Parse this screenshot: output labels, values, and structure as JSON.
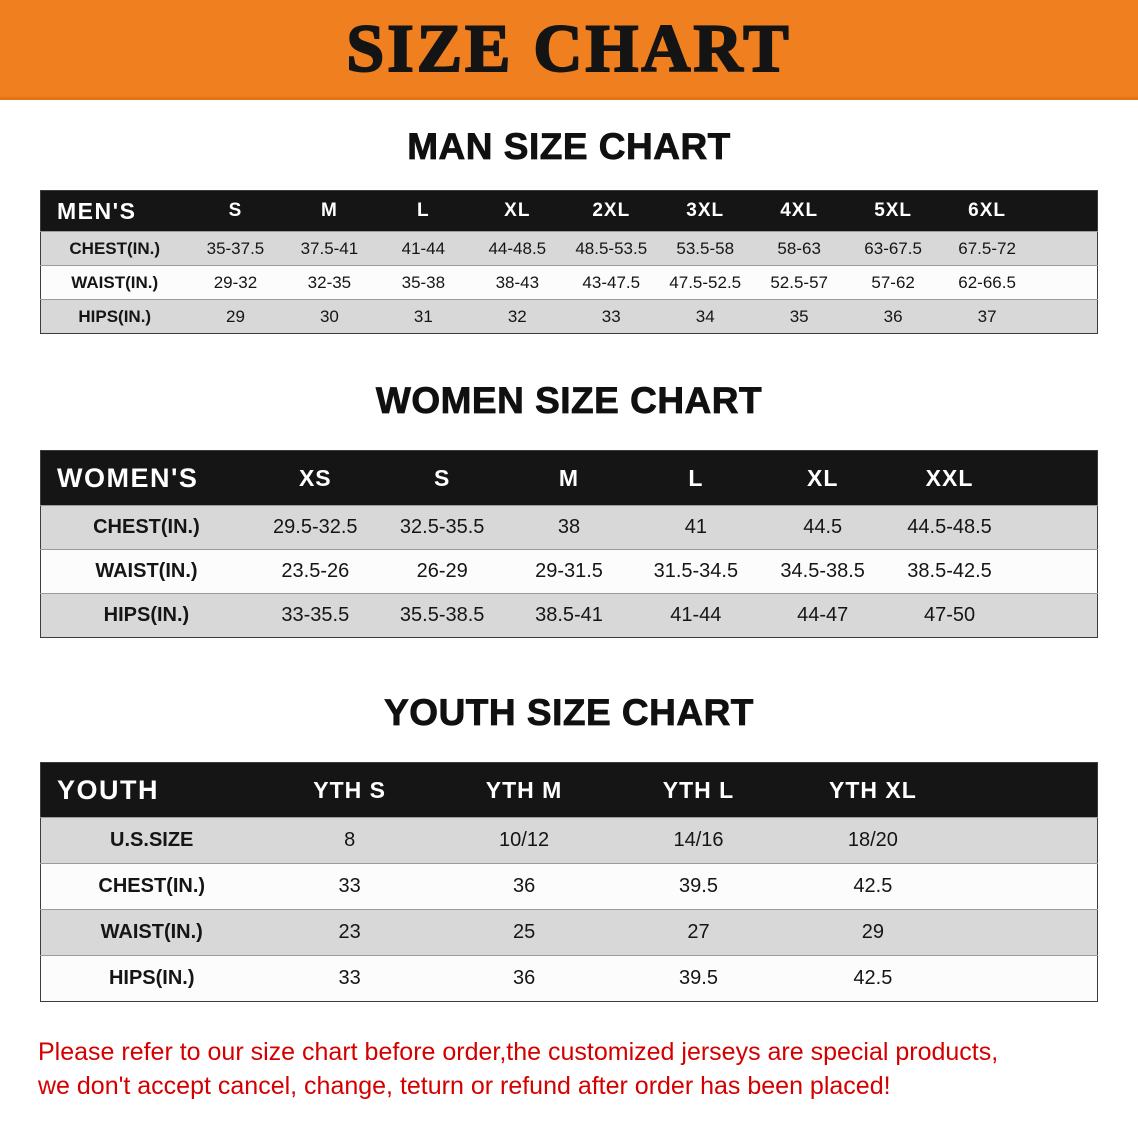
{
  "banner": {
    "title": "SIZE CHART"
  },
  "men": {
    "heading": "MAN SIZE CHART",
    "table": {
      "header": [
        "MEN'S",
        "S",
        "M",
        "L",
        "XL",
        "2XL",
        "3XL",
        "4XL",
        "5XL",
        "6XL"
      ],
      "rows": [
        [
          "CHEST(IN.)",
          "35-37.5",
          "37.5-41",
          "41-44",
          "44-48.5",
          "48.5-53.5",
          "53.5-58",
          "58-63",
          "63-67.5",
          "67.5-72"
        ],
        [
          "WAIST(IN.)",
          "29-32",
          "32-35",
          "35-38",
          "38-43",
          "43-47.5",
          "47.5-52.5",
          "52.5-57",
          "57-62",
          "62-66.5"
        ],
        [
          "HIPS(IN.)",
          "29",
          "30",
          "31",
          "32",
          "33",
          "34",
          "35",
          "36",
          "37"
        ]
      ]
    }
  },
  "women": {
    "heading": "WOMEN SIZE CHART",
    "table": {
      "header": [
        "WOMEN'S",
        "XS",
        "S",
        "M",
        "L",
        "XL",
        "XXL"
      ],
      "rows": [
        [
          "CHEST(IN.)",
          "29.5-32.5",
          "32.5-35.5",
          "38",
          "41",
          "44.5",
          "44.5-48.5"
        ],
        [
          "WAIST(IN.)",
          "23.5-26",
          "26-29",
          "29-31.5",
          "31.5-34.5",
          "34.5-38.5",
          "38.5-42.5"
        ],
        [
          "HIPS(IN.)",
          "33-35.5",
          "35.5-38.5",
          "38.5-41",
          "41-44",
          "44-47",
          "47-50"
        ]
      ]
    }
  },
  "youth": {
    "heading": "YOUTH SIZE CHART",
    "table": {
      "header": [
        "YOUTH",
        "YTH S",
        "YTH M",
        "YTH L",
        "YTH XL"
      ],
      "rows": [
        [
          "U.S.SIZE",
          "8",
          "10/12",
          "14/16",
          "18/20"
        ],
        [
          "CHEST(IN.)",
          "33",
          "36",
          "39.5",
          "42.5"
        ],
        [
          "WAIST(IN.)",
          "23",
          "25",
          "27",
          "29"
        ],
        [
          "HIPS(IN.)",
          "33",
          "36",
          "39.5",
          "42.5"
        ]
      ]
    }
  },
  "footer": {
    "line1": "Please refer to our size chart before order,the customized jerseys are special products,",
    "line2": "we don't accept cancel, change, teturn or refund after order has been placed!"
  },
  "colors": {
    "banner_orange": "#EF7F1F",
    "header_bg": "#151515",
    "row_shaded": "#D8D8D8",
    "row_light": "#FCFCFC",
    "note_red": "#D40000"
  }
}
